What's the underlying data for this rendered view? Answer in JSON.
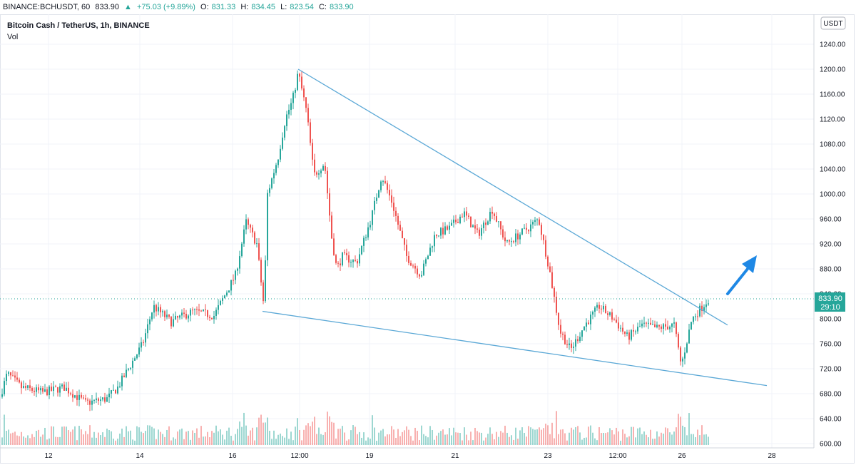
{
  "header": {
    "symbol": "BINANCE:BCHUSDT, 60",
    "last": "833.90",
    "change": "+75.03 (+9.89%)",
    "open_label": "O:",
    "open": "831.33",
    "high_label": "H:",
    "high": "834.45",
    "low_label": "L:",
    "low": "823.54",
    "close_label": "C:",
    "close": "833.90"
  },
  "legend": {
    "title": "Bitcoin Cash / TetherUS, 1h, BINANCE",
    "vol_label": "Vol"
  },
  "currency_label": "USDT",
  "price_badge": {
    "price": "833.90",
    "countdown": "29:10"
  },
  "colors": {
    "up": "#26a69a",
    "down": "#ef5350",
    "trend": "#5ba8d6",
    "arrow": "#1e88e5",
    "grid": "#f0f3fa"
  },
  "chart_data": {
    "type": "candlestick",
    "title": "Bitcoin Cash / TetherUS, 1h, BINANCE",
    "ylim": [
      600,
      1260
    ],
    "y_ticks": [
      "1240.00",
      "1200.00",
      "1160.00",
      "1120.00",
      "1080.00",
      "1040.00",
      "1000.00",
      "960.00",
      "920.00",
      "880.00",
      "840.00",
      "800.00",
      "760.00",
      "720.00",
      "680.00",
      "640.00",
      "600.00"
    ],
    "x_ticks": [
      "12",
      "14",
      "16",
      "12:00",
      "19",
      "21",
      "23",
      "12:00",
      "26",
      "28"
    ],
    "price_path": [
      [
        0,
        675
      ],
      [
        10,
        712
      ],
      [
        30,
        690
      ],
      [
        60,
        682
      ],
      [
        90,
        690
      ],
      [
        120,
        665
      ],
      [
        150,
        672
      ],
      [
        165,
        690
      ],
      [
        200,
        760
      ],
      [
        215,
        820
      ],
      [
        240,
        795
      ],
      [
        270,
        812
      ],
      [
        300,
        805
      ],
      [
        330,
        870
      ],
      [
        345,
        955
      ],
      [
        360,
        920
      ],
      [
        370,
        818
      ],
      [
        375,
        1000
      ],
      [
        390,
        1060
      ],
      [
        400,
        1120
      ],
      [
        410,
        1150
      ],
      [
        418,
        1195
      ],
      [
        430,
        1130
      ],
      [
        440,
        1030
      ],
      [
        455,
        1050
      ],
      [
        465,
        930
      ],
      [
        472,
        880
      ],
      [
        480,
        900
      ],
      [
        500,
        890
      ],
      [
        520,
        960
      ],
      [
        535,
        1030
      ],
      [
        550,
        985
      ],
      [
        570,
        900
      ],
      [
        590,
        870
      ],
      [
        610,
        935
      ],
      [
        630,
        945
      ],
      [
        650,
        970
      ],
      [
        670,
        935
      ],
      [
        690,
        975
      ],
      [
        710,
        920
      ],
      [
        740,
        945
      ],
      [
        755,
        960
      ],
      [
        770,
        880
      ],
      [
        785,
        780
      ],
      [
        800,
        750
      ],
      [
        820,
        790
      ],
      [
        840,
        820
      ],
      [
        860,
        800
      ],
      [
        880,
        770
      ],
      [
        900,
        790
      ],
      [
        920,
        785
      ],
      [
        945,
        790
      ],
      [
        955,
        725
      ],
      [
        970,
        800
      ],
      [
        995,
        834
      ]
    ],
    "trendlines": [
      {
        "from": [
          418,
          1200
        ],
        "to": [
          1020,
          790
        ]
      },
      {
        "from": [
          368,
          812
        ],
        "to": [
          1075,
          693
        ]
      }
    ],
    "last_price": 833.9
  }
}
